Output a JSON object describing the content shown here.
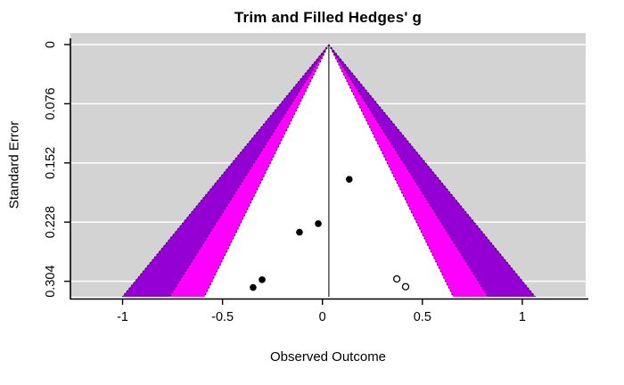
{
  "chart_data": {
    "type": "scatter",
    "subtype": "funnel-plot-trim-and-fill",
    "title": "Trim and Filled Hedges' g",
    "xlabel": "Observed Outcome",
    "ylabel": "Standard Error",
    "x_tick_labels": [
      "-1",
      "-0.5",
      "0",
      "0.5",
      "1"
    ],
    "x_tick_values": [
      -1,
      -0.5,
      0,
      0.5,
      1
    ],
    "y_tick_labels": [
      "0",
      "0.076",
      "0.152",
      "0.228",
      "0.304"
    ],
    "y_tick_values": [
      0,
      0.076,
      0.152,
      0.228,
      0.304
    ],
    "xlim": [
      -1.261,
      1.317
    ],
    "se_lim": [
      -0.0149,
      0.3239
    ],
    "estimate": 0.032,
    "funnel_bottom_se": 0.3239,
    "bands": [
      {
        "name": "99.9% pseudo-confidence region",
        "z": 3.19,
        "color": "#9400D3"
      },
      {
        "name": "99% pseudo-confidence region",
        "z": 2.46,
        "color": "#FF00FF"
      },
      {
        "name": "95% pseudo-confidence region",
        "z": 1.92,
        "color": "#FFFFFF"
      }
    ],
    "observed_studies": [
      {
        "x": 0.134,
        "se": 0.173
      },
      {
        "x": -0.021,
        "se": 0.23
      },
      {
        "x": -0.115,
        "se": 0.241
      },
      {
        "x": -0.302,
        "se": 0.302
      },
      {
        "x": -0.347,
        "se": 0.312
      }
    ],
    "imputed_studies": [
      {
        "x": 0.372,
        "se": 0.301
      },
      {
        "x": 0.416,
        "se": 0.311
      }
    ],
    "legend_position": "none",
    "grid": true,
    "colors": {
      "plot_background": "#D3D3D3",
      "gridline": "#FFFFFF",
      "reference_line": "#333333",
      "band_edge": "#000000",
      "axis": "#000000",
      "observed_point": "#000000",
      "imputed_point_fill": "#FFFFFF",
      "imputed_point_stroke": "#000000"
    }
  }
}
